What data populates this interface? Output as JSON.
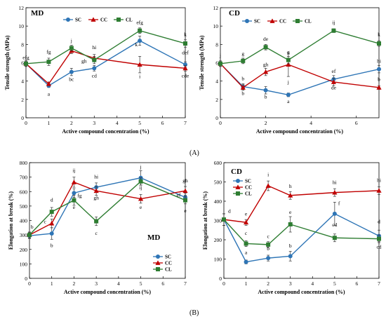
{
  "figure_labels": {
    "A": "(A)",
    "B": "(B)"
  },
  "colors": {
    "SC": "#2e75b6",
    "CC": "#c00000",
    "CL": "#2e7d32",
    "axis": "#000000"
  },
  "chart_data": [
    {
      "id": "a-md",
      "type": "line",
      "title": "MD",
      "xlabel": "Active compound concentration (%)",
      "ylabel": "Tensile strength (MPa)",
      "xlim": [
        0,
        7
      ],
      "ylim": [
        0,
        12
      ],
      "xticks": [
        0,
        1,
        2,
        3,
        4,
        5,
        6,
        7
      ],
      "yticks": [
        0,
        2,
        4,
        6,
        8,
        10,
        12
      ],
      "legend": "top-center",
      "series": [
        {
          "name": "SC",
          "marker": "circle",
          "x": [
            0,
            1,
            2,
            3,
            5,
            7
          ],
          "values": [
            5.9,
            3.5,
            5.0,
            5.4,
            8.4,
            5.8
          ],
          "err": [
            0.3,
            0.2,
            0.4,
            0.3,
            0.5,
            0.3
          ]
        },
        {
          "name": "CC",
          "marker": "triangle",
          "x": [
            0,
            1,
            2,
            3,
            5,
            7
          ],
          "values": [
            5.9,
            3.7,
            7.3,
            6.5,
            5.8,
            5.4
          ],
          "err": [
            0.3,
            0.2,
            0.3,
            0.4,
            0.9,
            0.3
          ]
        },
        {
          "name": "CL",
          "marker": "square",
          "x": [
            0,
            1,
            2,
            3,
            5,
            7
          ],
          "values": [
            5.9,
            6.1,
            7.6,
            6.3,
            9.5,
            8.1
          ],
          "err": [
            0.3,
            0.4,
            0.3,
            0.4,
            0.3,
            0.4
          ]
        }
      ],
      "annotations": [
        {
          "t": "efg",
          "x": 0,
          "y": 6.4
        },
        {
          "t": "fg",
          "x": 1,
          "y": 7.0
        },
        {
          "t": "a",
          "x": 1,
          "y": 2.4
        },
        {
          "t": "j",
          "x": 2,
          "y": 8.2
        },
        {
          "t": "bc",
          "x": 2,
          "y": 4.0
        },
        {
          "t": "hi",
          "x": 3,
          "y": 7.5
        },
        {
          "t": "gh",
          "x": 2.55,
          "y": 6.0
        },
        {
          "t": "cd",
          "x": 3,
          "y": 4.4
        },
        {
          "t": "efg",
          "x": 5,
          "y": 10.2
        },
        {
          "t": "k",
          "x": 4.85,
          "y": 7.8
        },
        {
          "t": "i",
          "x": 5,
          "y": 4.3
        },
        {
          "t": "k",
          "x": 7,
          "y": 8.9
        },
        {
          "t": "def",
          "x": 7,
          "y": 6.9
        },
        {
          "t": "cde",
          "x": 7,
          "y": 4.4
        }
      ]
    },
    {
      "id": "a-cd",
      "type": "line",
      "title": "CD",
      "xlabel": "Active compound concentration (%)",
      "ylabel": "Tensile strength (MPa)",
      "xlim": [
        0,
        7
      ],
      "ylim": [
        0,
        12
      ],
      "xticks": [
        0,
        2,
        4,
        6
      ],
      "yticks": [
        0,
        2,
        4,
        6,
        8,
        10,
        12
      ],
      "legend": "top-center",
      "series": [
        {
          "name": "SC",
          "marker": "circle",
          "x": [
            0,
            1,
            2,
            3,
            5,
            7
          ],
          "values": [
            5.9,
            3.4,
            3.0,
            2.5,
            4.2,
            5.3
          ],
          "err": [
            0.3,
            0.3,
            0.4,
            0.2,
            0.4,
            0.4
          ]
        },
        {
          "name": "CC",
          "marker": "triangle",
          "x": [
            0,
            1,
            2,
            3,
            5,
            7
          ],
          "values": [
            5.9,
            3.3,
            5.0,
            5.8,
            3.9,
            3.3
          ],
          "err": [
            0.3,
            0.3,
            0.4,
            1.3,
            0.4,
            0.2
          ]
        },
        {
          "name": "CL",
          "marker": "square",
          "x": [
            0,
            1,
            2,
            3,
            5,
            7
          ],
          "values": [
            5.9,
            6.2,
            7.7,
            6.3,
            9.5,
            8.1
          ],
          "err": [
            0.3,
            0.3,
            0.3,
            0.4,
            0.2,
            0.3
          ]
        }
      ],
      "annotations": [
        {
          "t": "j",
          "x": 0,
          "y": 6.6
        },
        {
          "t": "g",
          "x": 1,
          "y": 6.8
        },
        {
          "t": "b",
          "x": 1,
          "y": 2.5
        },
        {
          "t": "b",
          "x": 1,
          "y": 4.1
        },
        {
          "t": "de",
          "x": 2,
          "y": 8.4
        },
        {
          "t": "gh",
          "x": 2,
          "y": 5.6
        },
        {
          "t": "b",
          "x": 2,
          "y": 2.1
        },
        {
          "t": "g",
          "x": 3,
          "y": 7.0
        },
        {
          "t": "j",
          "x": 3,
          "y": 3.7
        },
        {
          "t": "a",
          "x": 3,
          "y": 1.6
        },
        {
          "t": "ij",
          "x": 5,
          "y": 10.2
        },
        {
          "t": "ef",
          "x": 5,
          "y": 4.9
        },
        {
          "t": "de",
          "x": 5,
          "y": 3.1
        },
        {
          "t": "k",
          "x": 7,
          "y": 8.9
        },
        {
          "t": "hi",
          "x": 7,
          "y": 6.0
        },
        {
          "t": "b",
          "x": 7,
          "y": 4.0
        }
      ]
    },
    {
      "id": "b-md",
      "type": "line",
      "title": "MD",
      "xlabel": "Active compound concentration (%)",
      "ylabel": "Elongation at break (%)",
      "xlim": [
        0,
        7
      ],
      "ylim": [
        0,
        800
      ],
      "xticks": [
        0,
        1,
        2,
        3,
        4,
        5,
        6,
        7
      ],
      "yticks": [
        0,
        100,
        200,
        300,
        400,
        500,
        600,
        700,
        800
      ],
      "legend": "bottom-right",
      "series": [
        {
          "name": "SC",
          "marker": "circle",
          "x": [
            0,
            1,
            2,
            3,
            5,
            7
          ],
          "values": [
            295,
            310,
            590,
            630,
            695,
            560
          ],
          "err": [
            20,
            40,
            30,
            30,
            50,
            30
          ]
        },
        {
          "name": "CC",
          "marker": "triangle",
          "x": [
            0,
            1,
            2,
            3,
            5,
            7
          ],
          "values": [
            300,
            380,
            665,
            605,
            550,
            605
          ],
          "err": [
            20,
            30,
            35,
            30,
            30,
            30
          ]
        },
        {
          "name": "CL",
          "marker": "square",
          "x": [
            0,
            1,
            2,
            3,
            5,
            7
          ],
          "values": [
            300,
            460,
            540,
            395,
            670,
            540
          ],
          "err": [
            20,
            30,
            35,
            30,
            25,
            25
          ]
        }
      ],
      "annotations": [
        {
          "t": "b",
          "x": 0.12,
          "y": 345
        },
        {
          "t": "c",
          "x": 0.7,
          "y": 380
        },
        {
          "t": "d",
          "x": 1,
          "y": 530
        },
        {
          "t": "b",
          "x": 1,
          "y": 215
        },
        {
          "t": "ij",
          "x": 2,
          "y": 735
        },
        {
          "t": "fg",
          "x": 2.25,
          "y": 560
        },
        {
          "t": "e",
          "x": 2,
          "y": 480
        },
        {
          "t": "hi",
          "x": 3,
          "y": 690
        },
        {
          "t": "gh",
          "x": 3,
          "y": 545
        },
        {
          "t": "c",
          "x": 3,
          "y": 300
        },
        {
          "t": "j",
          "x": 5,
          "y": 760
        },
        {
          "t": "ij",
          "x": 5,
          "y": 615
        },
        {
          "t": "e",
          "x": 5,
          "y": 480
        },
        {
          "t": "gh",
          "x": 7,
          "y": 665
        },
        {
          "t": "ef",
          "x": 6.7,
          "y": 565
        },
        {
          "t": "e",
          "x": 7,
          "y": 455
        }
      ]
    },
    {
      "id": "b-cd",
      "type": "line",
      "title": "CD",
      "xlabel": "Active compound concentration (%)",
      "ylabel": "Elongation at break (%)",
      "xlim": [
        0,
        7
      ],
      "ylim": [
        0,
        600
      ],
      "xticks": [
        0,
        1,
        2,
        3,
        4,
        5,
        6,
        7
      ],
      "yticks": [
        0,
        100,
        200,
        300,
        400,
        500,
        600
      ],
      "legend": "top-left",
      "series": [
        {
          "name": "SC",
          "marker": "circle",
          "x": [
            0,
            1,
            2,
            3,
            5,
            7
          ],
          "values": [
            305,
            85,
            105,
            115,
            335,
            220
          ],
          "err": [
            30,
            10,
            15,
            25,
            60,
            30
          ]
        },
        {
          "name": "CC",
          "marker": "triangle",
          "x": [
            0,
            1,
            2,
            3,
            5,
            7
          ],
          "values": [
            305,
            290,
            480,
            430,
            445,
            455
          ],
          "err": [
            30,
            15,
            25,
            20,
            20,
            20
          ]
        },
        {
          "name": "CL",
          "marker": "square",
          "x": [
            0,
            1,
            2,
            3,
            5,
            7
          ],
          "values": [
            305,
            180,
            175,
            280,
            210,
            205
          ],
          "err": [
            30,
            15,
            15,
            40,
            20,
            20
          ]
        }
      ],
      "annotations": [
        {
          "t": "d",
          "x": 0.25,
          "y": 340
        },
        {
          "t": "e",
          "x": 1,
          "y": 325
        },
        {
          "t": "c",
          "x": 1,
          "y": 225
        },
        {
          "t": "a",
          "x": 1,
          "y": 125
        },
        {
          "t": "i",
          "x": 2,
          "y": 530
        },
        {
          "t": "c",
          "x": 2,
          "y": 210
        },
        {
          "t": "b",
          "x": 2,
          "y": 145
        },
        {
          "t": "h",
          "x": 3,
          "y": 470
        },
        {
          "t": "e",
          "x": 3,
          "y": 335
        },
        {
          "t": "b",
          "x": 3,
          "y": 160
        },
        {
          "t": "hi",
          "x": 5,
          "y": 490
        },
        {
          "t": "f",
          "x": 5.2,
          "y": 380
        },
        {
          "t": "cd",
          "x": 5,
          "y": 270
        },
        {
          "t": "hi",
          "x": 7,
          "y": 500
        },
        {
          "t": "d",
          "x": 7,
          "y": 285
        },
        {
          "t": "cd",
          "x": 7,
          "y": 155
        }
      ]
    }
  ]
}
